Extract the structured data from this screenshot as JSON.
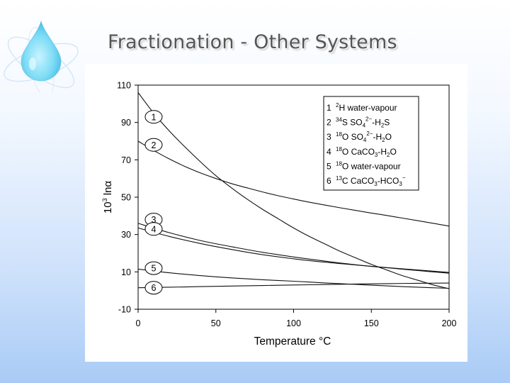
{
  "slide": {
    "title": "Fractionation - Other Systems"
  },
  "logo": {
    "icon": "water-drop-atom-icon"
  },
  "chart_data": {
    "type": "line",
    "title": "",
    "xlabel": "Temperature °C",
    "ylabel": "10³ lnα",
    "xlim": [
      0,
      200
    ],
    "ylim": [
      -10,
      110
    ],
    "xticks": [
      0,
      50,
      100,
      150,
      200
    ],
    "yticks": [
      -10,
      10,
      30,
      50,
      70,
      90,
      110
    ],
    "grid": false,
    "legend_position": "top-right",
    "series": [
      {
        "id": "1",
        "name": "1 ²H water-vapour",
        "x": [
          0,
          10,
          20,
          30,
          40,
          50,
          60,
          70,
          80,
          90,
          100,
          110,
          120,
          130,
          140,
          150,
          160,
          170,
          180,
          190,
          200
        ],
        "y": [
          106,
          95,
          85.5,
          77,
          69,
          61.5,
          55,
          49,
          43.5,
          38.5,
          33.5,
          29,
          25,
          21,
          17.5,
          14,
          11,
          8,
          5.5,
          3,
          1
        ]
      },
      {
        "id": "2",
        "name": "2 ³⁴S SO₄²⁻-H₂S",
        "x": [
          0,
          10,
          20,
          30,
          40,
          50,
          60,
          70,
          80,
          90,
          100,
          110,
          120,
          130,
          140,
          150,
          160,
          170,
          180,
          190,
          200
        ],
        "y": [
          80,
          75,
          70.5,
          66.5,
          63,
          60,
          57.3,
          55,
          52.8,
          50.8,
          49,
          47.3,
          45.8,
          44.3,
          42.9,
          41.5,
          40.2,
          38.8,
          37.4,
          36,
          34.5
        ]
      },
      {
        "id": "3",
        "name": "3 ¹⁸O SO₄²⁻-H₂O",
        "x": [
          0,
          20,
          40,
          60,
          80,
          100,
          120,
          140,
          160,
          180,
          200
        ],
        "y": [
          36,
          31,
          26.8,
          23.5,
          20.5,
          18,
          15.8,
          13.8,
          12.2,
          10.7,
          9.3
        ]
      },
      {
        "id": "4",
        "name": "4 ¹⁸O CaCO₃-H₂O",
        "x": [
          0,
          20,
          40,
          60,
          80,
          100,
          120,
          140,
          160,
          180,
          200
        ],
        "y": [
          33.5,
          29,
          25.2,
          22,
          19.2,
          17,
          15.2,
          13.7,
          12.3,
          11,
          9.7
        ]
      },
      {
        "id": "5",
        "name": "5 ¹⁸O water-vapour",
        "x": [
          0,
          20,
          40,
          60,
          80,
          100,
          120,
          140,
          160,
          180,
          200
        ],
        "y": [
          11.5,
          9.5,
          8,
          6.8,
          5.8,
          5,
          4.1,
          3.3,
          2.5,
          1.8,
          1.2
        ]
      },
      {
        "id": "6",
        "name": "6 ¹³C CaCO₃-HCO₃⁻",
        "x": [
          0,
          20,
          40,
          60,
          80,
          100,
          120,
          140,
          160,
          180,
          200
        ],
        "y": [
          1.5,
          1.8,
          2.1,
          2.4,
          2.7,
          3,
          3.2,
          3.5,
          3.7,
          3.9,
          4
        ]
      }
    ],
    "curve_labels": [
      {
        "text": "1",
        "x": 10,
        "y": 93
      },
      {
        "text": "2",
        "x": 10,
        "y": 78
      },
      {
        "text": "3",
        "x": 10,
        "y": 38
      },
      {
        "text": "4",
        "x": 10,
        "y": 33
      },
      {
        "text": "5",
        "x": 10,
        "y": 12
      },
      {
        "text": "6",
        "x": 10,
        "y": 1.5
      }
    ],
    "legend": [
      {
        "num": "1",
        "sup": "2",
        "main": "H water-vapour"
      },
      {
        "num": "2",
        "sup": "34",
        "main": "S SO",
        "sub": "4",
        "sup2": "2−",
        "tail": "-H",
        "sub2": "2",
        "tail2": "S"
      },
      {
        "num": "3",
        "sup": "18",
        "main": "O SO",
        "sub": "4",
        "sup2": "2−",
        "tail": "-H",
        "sub2": "2",
        "tail2": "O"
      },
      {
        "num": "4",
        "sup": "18",
        "main": "O CaCO",
        "sub": "3",
        "tail": "-H",
        "sub2": "2",
        "tail2": "O"
      },
      {
        "num": "5",
        "sup": "18",
        "main": "O water-vapour"
      },
      {
        "num": "6",
        "sup": "13",
        "main": "C CaCO",
        "sub": "3",
        "tail": "-HCO",
        "sub2": "3",
        "sup3": "−"
      }
    ]
  }
}
